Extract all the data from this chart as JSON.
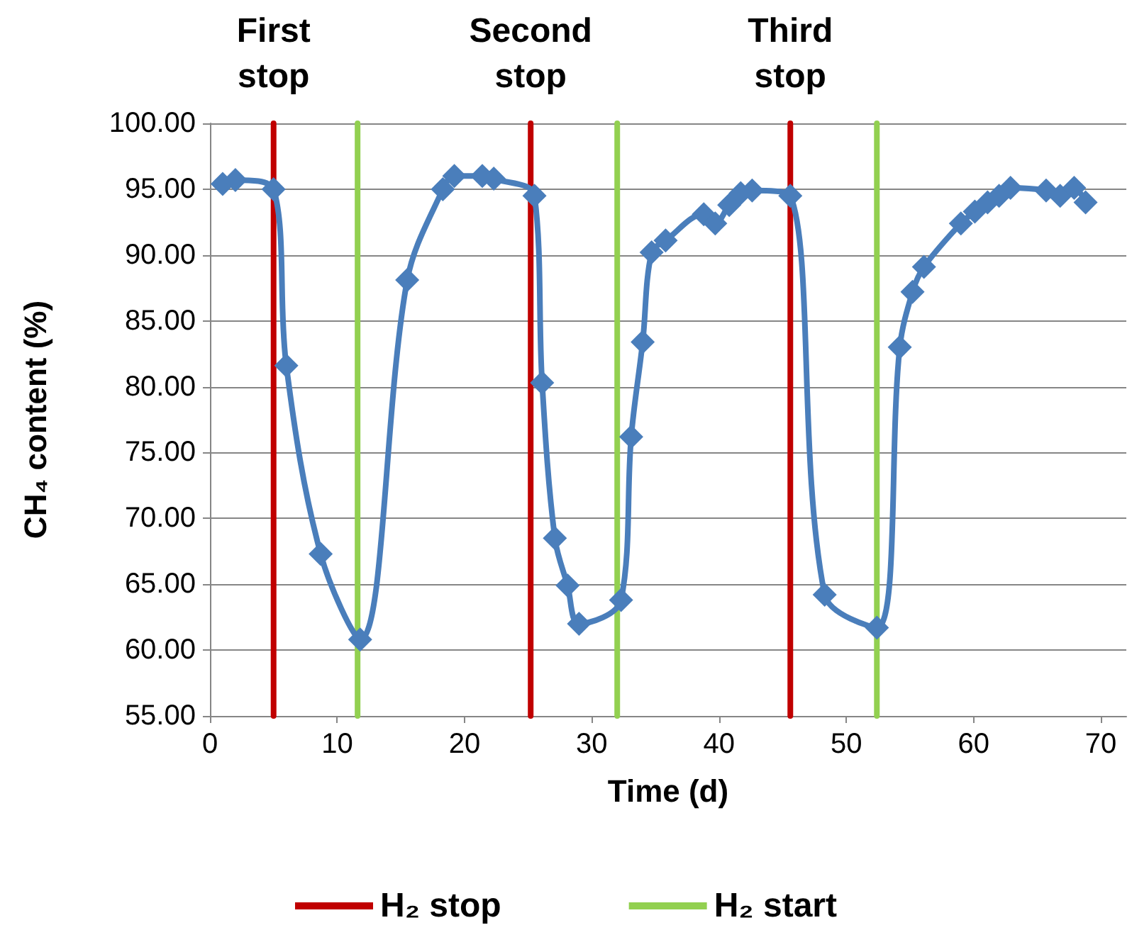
{
  "chart_data": {
    "type": "line",
    "xlabel": "Time (d)",
    "ylabel": "CH₄ content (%)",
    "xlim": [
      0,
      72
    ],
    "xticks": [
      0,
      10,
      20,
      30,
      40,
      50,
      60,
      70
    ],
    "ylim": [
      55,
      100
    ],
    "yticks": [
      {
        "value": 55,
        "label": "55.00"
      },
      {
        "value": 60,
        "label": "60.00"
      },
      {
        "value": 65,
        "label": "65.00"
      },
      {
        "value": 70,
        "label": "70.00"
      },
      {
        "value": 75,
        "label": "75.00"
      },
      {
        "value": 80,
        "label": "80.00"
      },
      {
        "value": 85,
        "label": "85.00"
      },
      {
        "value": 90,
        "label": "90.00"
      },
      {
        "value": 95,
        "label": "95.00"
      },
      {
        "value": 100,
        "label": "100.00"
      }
    ],
    "grid": "y",
    "legend": "bottom",
    "line_style": "solid",
    "annotations": [
      "First stop",
      "Second stop",
      "Third stop"
    ],
    "series": [
      {
        "color": "#4a7ebb",
        "marker": "diamond",
        "x": [
          1,
          2,
          5,
          6,
          8.7,
          11.8,
          15.5,
          18.3,
          19.2,
          21.4,
          22.3,
          25.5,
          26.1,
          27.1,
          28.1,
          29,
          32.3,
          33.1,
          34,
          34.7,
          35.8,
          38.8,
          39.7,
          40.8,
          41.7,
          42.6,
          45.6,
          48.3,
          52.4,
          54.2,
          55.2,
          56.1,
          59,
          60.1,
          61.1,
          62,
          62.9,
          65.7,
          66.8,
          67.9,
          68.8
        ],
        "values": [
          95.4,
          95.7,
          95.0,
          81.6,
          67.3,
          60.8,
          88.1,
          95.0,
          96.0,
          96.0,
          95.8,
          94.5,
          80.3,
          68.5,
          64.9,
          62.0,
          63.8,
          76.2,
          83.4,
          90.2,
          91.1,
          93.1,
          92.4,
          93.8,
          94.7,
          94.9,
          94.5,
          64.2,
          61.7,
          83.0,
          87.2,
          89.1,
          92.4,
          93.3,
          94.0,
          94.5,
          95.1,
          94.9,
          94.5,
          95.1,
          94.0
        ]
      },
      {
        "name": "H₂ stop",
        "color": "#c00000",
        "marker": "none",
        "x": [
          5,
          5,
          null,
          25.2,
          25.2,
          null,
          45.6,
          45.6
        ],
        "values": [
          55,
          100,
          null,
          55,
          100,
          null,
          55,
          100
        ]
      },
      {
        "name": "H₂ start",
        "color": "#92d050",
        "marker": "none",
        "x": [
          11.6,
          11.6,
          null,
          32,
          32,
          null,
          52.4,
          52.4
        ],
        "values": [
          55,
          100,
          null,
          55,
          100,
          null,
          55,
          100
        ]
      }
    ]
  }
}
